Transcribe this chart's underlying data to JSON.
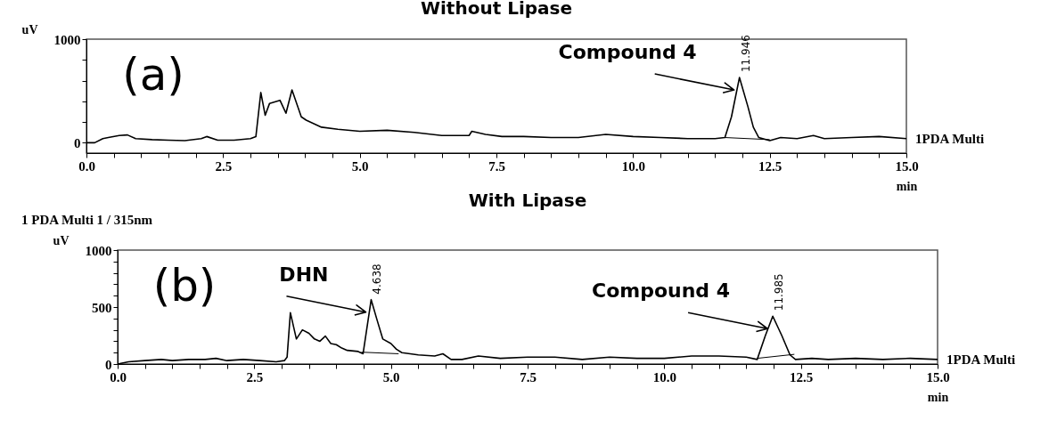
{
  "chart_data": [
    {
      "type": "line",
      "title": "Without Lipase",
      "xlabel": "min",
      "ylabel": "uV",
      "xlim": [
        0,
        15
      ],
      "ylim": [
        -100,
        1000
      ],
      "xticks": [
        {
          "value": 0,
          "label": "0.0"
        },
        {
          "value": 0.5,
          "label": null
        },
        {
          "value": 1,
          "label": null
        },
        {
          "value": 1.5,
          "label": null
        },
        {
          "value": 2,
          "label": null
        },
        {
          "value": 2.5,
          "label": "2.5"
        },
        {
          "value": 3,
          "label": null
        },
        {
          "value": 3.5,
          "label": null
        },
        {
          "value": 4,
          "label": null
        },
        {
          "value": 4.5,
          "label": null
        },
        {
          "value": 5,
          "label": "5.0"
        },
        {
          "value": 5.5,
          "label": null
        },
        {
          "value": 6,
          "label": null
        },
        {
          "value": 6.5,
          "label": null
        },
        {
          "value": 7,
          "label": null
        },
        {
          "value": 7.5,
          "label": "7.5"
        },
        {
          "value": 8,
          "label": null
        },
        {
          "value": 8.5,
          "label": null
        },
        {
          "value": 9,
          "label": null
        },
        {
          "value": 9.5,
          "label": null
        },
        {
          "value": 10,
          "label": "10.0"
        },
        {
          "value": 10.5,
          "label": null
        },
        {
          "value": 11,
          "label": null
        },
        {
          "value": 11.5,
          "label": null
        },
        {
          "value": 12,
          "label": null
        },
        {
          "value": 12.5,
          "label": "12.5"
        },
        {
          "value": 13,
          "label": null
        },
        {
          "value": 13.5,
          "label": null
        },
        {
          "value": 14,
          "label": null
        },
        {
          "value": 14.5,
          "label": null
        },
        {
          "value": 15,
          "label": "15.0"
        }
      ],
      "yticks": [
        0,
        {
          "value": 200,
          "label": null
        },
        {
          "value": 400,
          "label": null
        },
        {
          "value": 600,
          "label": null
        },
        {
          "value": 800,
          "label": null
        },
        1000
      ],
      "series": [
        {
          "color": "#000000",
          "x": [
            0,
            0.15,
            0.3,
            0.4,
            0.6,
            0.75,
            0.9,
            1.2,
            1.5,
            1.8,
            2.1,
            2.2,
            2.4,
            2.7,
            3.0,
            3.1,
            3.19,
            3.27,
            3.35,
            3.54,
            3.65,
            3.76,
            3.93,
            4.02,
            4.3,
            4.6,
            5.0,
            5.5,
            6.0,
            6.5,
            7.0,
            7.05,
            7.3,
            7.6,
            8.0,
            8.5,
            9.0,
            9.5,
            10.0,
            10.5,
            11.0,
            11.5,
            11.68,
            11.8,
            11.946,
            12.1,
            12.2,
            12.3,
            12.5,
            12.7,
            13.0,
            13.3,
            13.5,
            14.0,
            14.5,
            15.0
          ],
          "values": [
            0,
            0,
            40,
            50,
            70,
            75,
            40,
            30,
            25,
            20,
            40,
            60,
            25,
            25,
            40,
            60,
            485,
            265,
            380,
            410,
            285,
            510,
            250,
            218,
            150,
            130,
            110,
            120,
            100,
            70,
            70,
            110,
            80,
            60,
            60,
            50,
            50,
            80,
            60,
            50,
            40,
            40,
            50,
            250,
            630,
            350,
            150,
            50,
            20,
            50,
            40,
            70,
            40,
            50,
            60,
            40
          ]
        },
        {
          "color": "#000000",
          "x": [
            11.68,
            12.5
          ],
          "values": [
            50,
            30
          ]
        }
      ],
      "annotations": [
        "(a)",
        "1PDA Multi",
        {
          "text": "Compound 4",
          "x": 11.946,
          "y": 630
        },
        {
          "text": "11.946",
          "x": 11.946,
          "y": 630
        }
      ]
    },
    {
      "type": "line",
      "title": "With Lipase",
      "xlabel": "min",
      "ylabel": "uV",
      "xlim": [
        0,
        15
      ],
      "ylim": [
        0,
        1000
      ],
      "xticks": [
        {
          "value": 0,
          "label": "0.0"
        },
        {
          "value": 0.5,
          "label": null
        },
        {
          "value": 1,
          "label": null
        },
        {
          "value": 1.5,
          "label": null
        },
        {
          "value": 2,
          "label": null
        },
        {
          "value": 2.5,
          "label": "2.5"
        },
        {
          "value": 3,
          "label": null
        },
        {
          "value": 3.5,
          "label": null
        },
        {
          "value": 4,
          "label": null
        },
        {
          "value": 4.5,
          "label": null
        },
        {
          "value": 5,
          "label": "5.0"
        },
        {
          "value": 5.5,
          "label": null
        },
        {
          "value": 6,
          "label": null
        },
        {
          "value": 6.5,
          "label": null
        },
        {
          "value": 7,
          "label": null
        },
        {
          "value": 7.5,
          "label": "7.5"
        },
        {
          "value": 8,
          "label": null
        },
        {
          "value": 8.5,
          "label": null
        },
        {
          "value": 9,
          "label": null
        },
        {
          "value": 9.5,
          "label": null
        },
        {
          "value": 10,
          "label": "10.0"
        },
        {
          "value": 10.5,
          "label": null
        },
        {
          "value": 11,
          "label": null
        },
        {
          "value": 11.5,
          "label": null
        },
        {
          "value": 12,
          "label": null
        },
        {
          "value": 12.5,
          "label": "12.5"
        },
        {
          "value": 13,
          "label": null
        },
        {
          "value": 13.5,
          "label": null
        },
        {
          "value": 14,
          "label": null
        },
        {
          "value": 14.5,
          "label": null
        },
        {
          "value": 15,
          "label": "15.0"
        }
      ],
      "yticks": [
        0,
        {
          "value": 100,
          "label": null
        },
        {
          "value": 200,
          "label": null
        },
        {
          "value": 300,
          "label": null
        },
        {
          "value": 400,
          "label": null
        },
        500,
        {
          "value": 600,
          "label": null
        },
        {
          "value": 700,
          "label": null
        },
        {
          "value": 800,
          "label": null
        },
        {
          "value": 900,
          "label": null
        },
        1000
      ],
      "series": [
        {
          "color": "#000000",
          "x": [
            0,
            0.2,
            0.5,
            0.8,
            1.0,
            1.3,
            1.6,
            1.8,
            2.0,
            2.3,
            2.6,
            2.9,
            3.05,
            3.1,
            3.16,
            3.27,
            3.38,
            3.5,
            3.6,
            3.7,
            3.8,
            3.9,
            4.0,
            4.1,
            4.2,
            4.4,
            4.49,
            4.638,
            4.75,
            4.85,
            5.0,
            5.1,
            5.2,
            5.5,
            5.8,
            5.95,
            6.1,
            6.3,
            6.6,
            7.0,
            7.5,
            8.0,
            8.5,
            9.0,
            9.5,
            10.0,
            10.5,
            11.0,
            11.5,
            11.7,
            11.85,
            11.985,
            12.15,
            12.3,
            12.4,
            12.7,
            13.0,
            13.5,
            14.0,
            14.5,
            15.0
          ],
          "values": [
            0,
            20,
            30,
            40,
            30,
            40,
            40,
            50,
            30,
            40,
            30,
            20,
            30,
            60,
            450,
            220,
            300,
            270,
            220,
            200,
            245,
            180,
            170,
            140,
            120,
            110,
            90,
            565,
            380,
            220,
            180,
            130,
            100,
            80,
            70,
            90,
            40,
            40,
            70,
            50,
            60,
            60,
            40,
            60,
            50,
            50,
            70,
            70,
            60,
            40,
            250,
            420,
            250,
            80,
            40,
            50,
            40,
            50,
            40,
            50,
            40
          ]
        },
        {
          "color": "#000000",
          "x": [
            4.46,
            5.14
          ],
          "values": [
            104,
            90
          ]
        },
        {
          "color": "#000000",
          "x": [
            11.7,
            12.38
          ],
          "values": [
            50,
            85
          ]
        }
      ],
      "annotations": [
        "(b)",
        "1PDA Multi",
        "1   PDA Multi 1 / 315nm",
        {
          "text": "DHN",
          "x": 4.638,
          "y": 565
        },
        {
          "text": "4.638",
          "x": 4.638,
          "y": 565
        },
        {
          "text": "Compound 4",
          "x": 11.985,
          "y": 420
        },
        {
          "text": "11.985",
          "x": 11.985,
          "y": 420
        }
      ]
    }
  ]
}
